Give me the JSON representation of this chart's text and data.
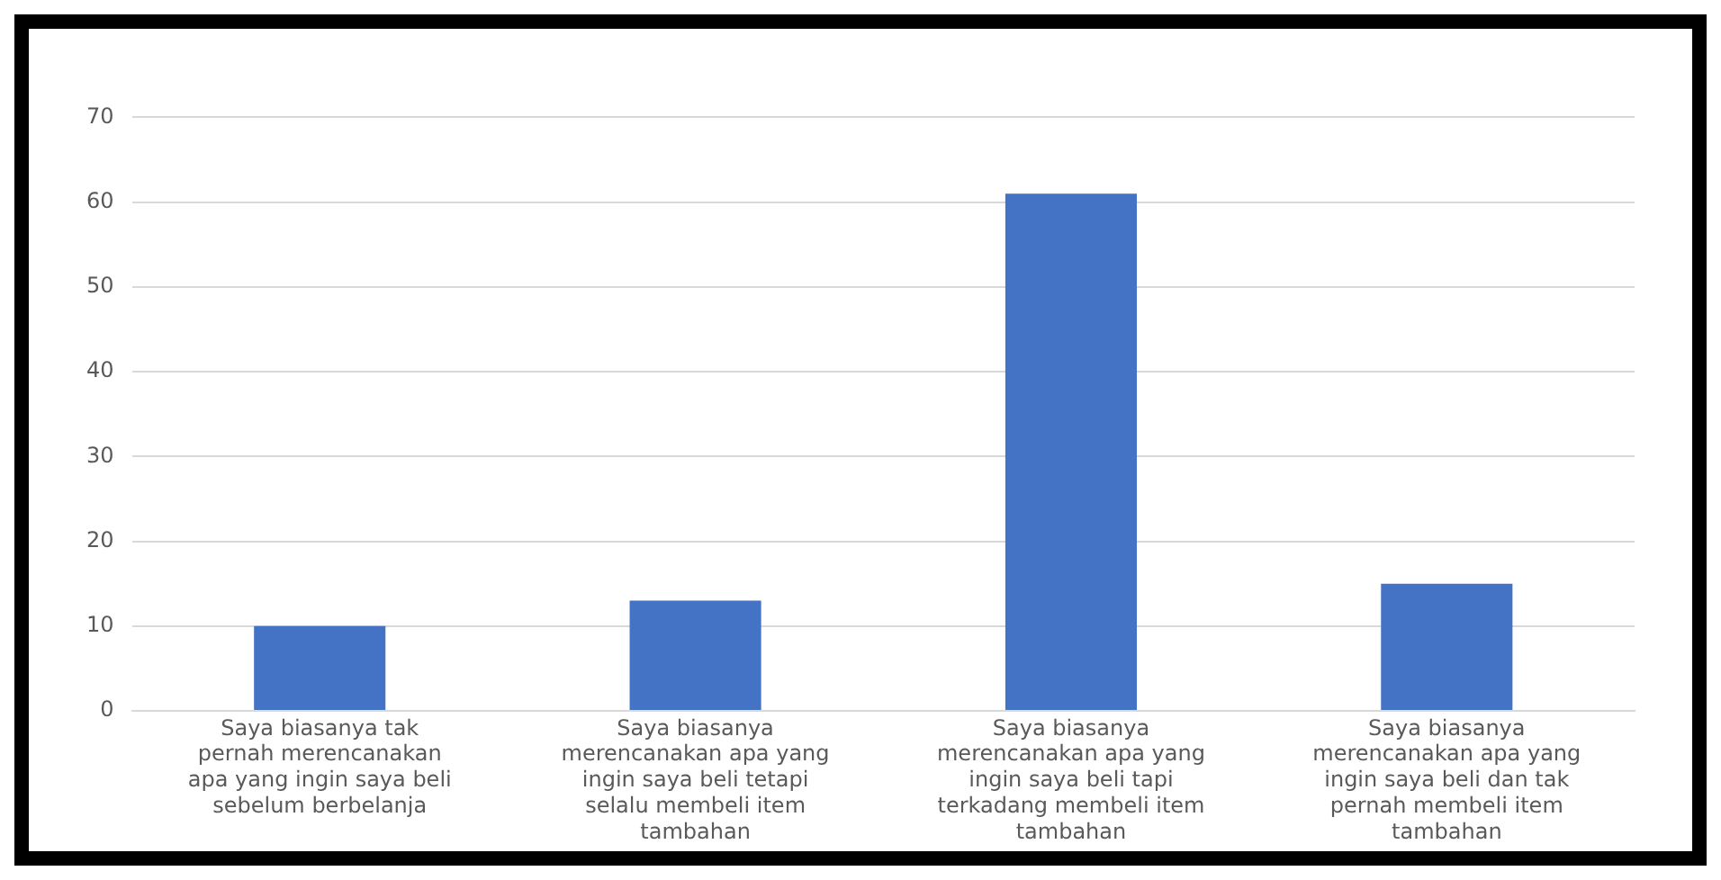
{
  "chart_data": {
    "type": "bar",
    "categories": [
      "Saya biasanya tak pernah merencanakan apa yang ingin saya beli sebelum berbelanja",
      "Saya biasanya merencanakan apa yang ingin saya beli tetapi selalu membeli item tambahan",
      "Saya biasanya merencanakan apa yang ingin saya beli tapi terkadang membeli item tambahan",
      "Saya biasanya merencanakan apa yang ingin saya beli dan tak pernah membeli item tambahan"
    ],
    "values": [
      10,
      13,
      61,
      15
    ],
    "color": "#4472c4",
    "ylim": [
      0,
      70
    ],
    "yticks": [
      0,
      10,
      20,
      30,
      40,
      50,
      60,
      70
    ],
    "grid": "y",
    "legend": false
  }
}
